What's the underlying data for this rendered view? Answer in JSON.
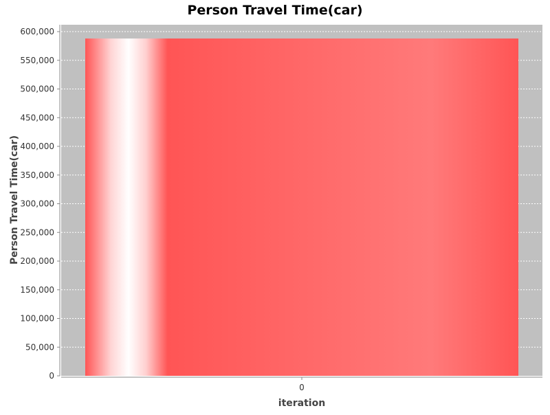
{
  "chart_data": {
    "type": "bar",
    "title": "Person Travel Time(car)",
    "xlabel": "iteration",
    "ylabel": "Person Travel Time(car)",
    "categories": [
      "0"
    ],
    "values": [
      588000
    ],
    "ylim": [
      0,
      612000
    ],
    "yticks": [
      0,
      50000,
      100000,
      150000,
      200000,
      250000,
      300000,
      350000,
      400000,
      450000,
      500000,
      550000,
      600000
    ],
    "grid": true,
    "legend": "none",
    "colors": {
      "plot_background": "#c0c0c0",
      "grid": "#ffffff",
      "bar": "#ff5555",
      "bar_highlight": "#ffffff",
      "axis": "#888888",
      "tick_text": "#333333",
      "label_text": "#444444",
      "title_text": "#000000"
    }
  }
}
